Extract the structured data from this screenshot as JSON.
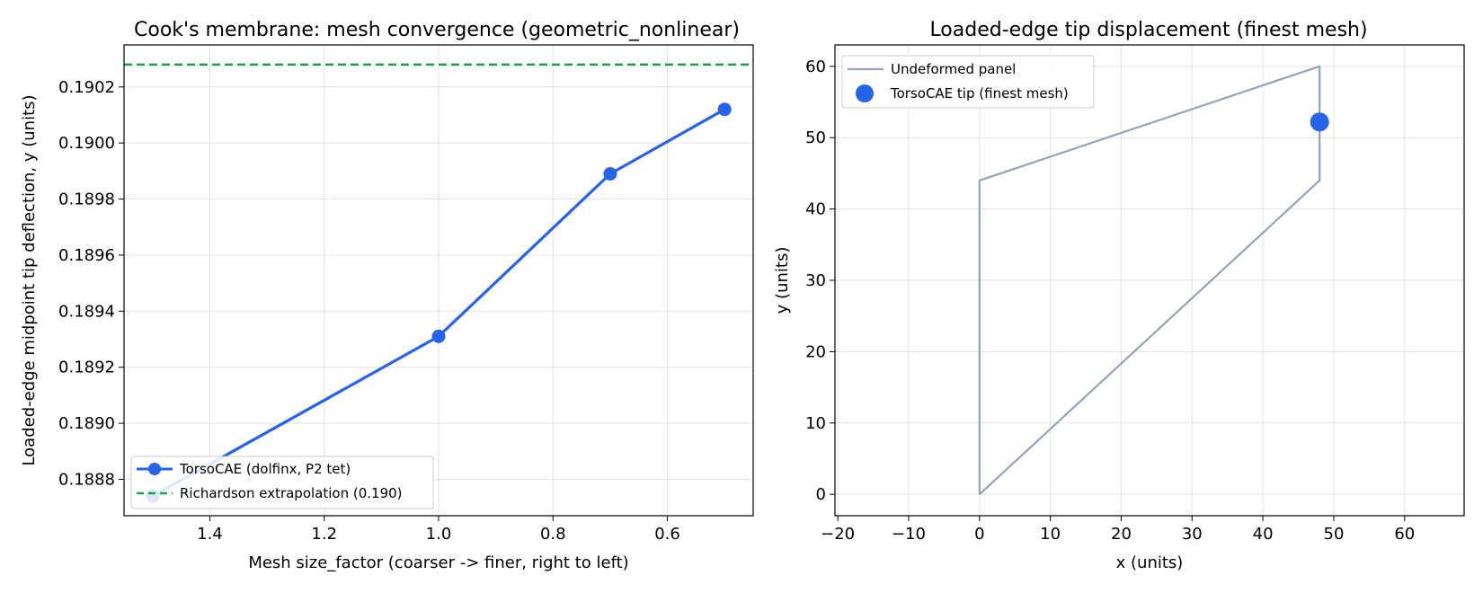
{
  "chart_data": [
    {
      "type": "line",
      "title": "Cook's membrane: mesh convergence (geometric_nonlinear)",
      "xlabel": "Mesh size_factor (coarser -> finer, right to left)",
      "ylabel": "Loaded-edge midpoint tip deflection, y (units)",
      "xlim": [
        1.55,
        0.45
      ],
      "ylim": [
        0.18867,
        0.19035
      ],
      "x_inverted": true,
      "xticks": [
        1.4,
        1.2,
        1.0,
        0.8,
        0.6
      ],
      "xtick_labels": [
        "1.4",
        "1.2",
        "1.0",
        "0.8",
        "0.6"
      ],
      "yticks": [
        0.1888,
        0.189,
        0.1892,
        0.1894,
        0.1896,
        0.1898,
        0.19,
        0.1902
      ],
      "ytick_labels": [
        "0.1888",
        "0.1890",
        "0.1892",
        "0.1894",
        "0.1896",
        "0.1898",
        "0.1900",
        "0.1902"
      ],
      "grid": true,
      "legend_position": "lower-left",
      "series": [
        {
          "name": "TorsoCAE (dolfinx, P2 tet)",
          "style": "line-marker",
          "color": "#2563eb",
          "x": [
            1.5,
            1.0,
            0.7,
            0.5
          ],
          "y": [
            0.18874,
            0.18931,
            0.18989,
            0.19012
          ]
        },
        {
          "name": "Richardson extrapolation (0.190)",
          "style": "dashed-hline",
          "color": "#16a34a",
          "y": 0.19028
        }
      ]
    },
    {
      "type": "line",
      "title": "Loaded-edge tip displacement (finest mesh)",
      "xlabel": "x (units)",
      "ylabel": "y (units)",
      "xlim": [
        -20.4,
        68.4
      ],
      "ylim": [
        -3,
        63
      ],
      "xticks": [
        -20,
        -10,
        0,
        10,
        20,
        30,
        40,
        50,
        60
      ],
      "xtick_labels": [
        "−20",
        "−10",
        "0",
        "10",
        "20",
        "30",
        "40",
        "50",
        "60"
      ],
      "yticks": [
        0,
        10,
        20,
        30,
        40,
        50,
        60
      ],
      "ytick_labels": [
        "0",
        "10",
        "20",
        "30",
        "40",
        "50",
        "60"
      ],
      "grid": true,
      "legend_position": "upper-left",
      "series": [
        {
          "name": "Undeformed panel",
          "style": "line",
          "color": "#94a3b8",
          "x": [
            0,
            48,
            48,
            0,
            0
          ],
          "y": [
            0,
            44,
            60,
            44,
            0
          ]
        },
        {
          "name": "TorsoCAE tip (finest mesh)",
          "style": "marker",
          "color": "#2563eb",
          "x": [
            48
          ],
          "y": [
            52.2
          ]
        }
      ]
    }
  ]
}
